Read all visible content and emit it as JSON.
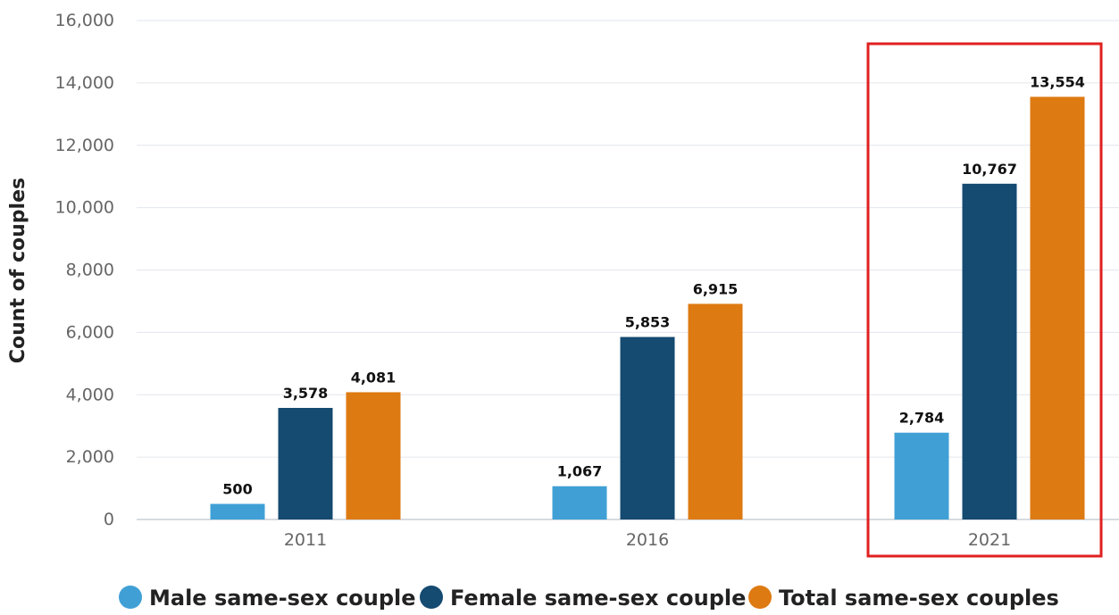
{
  "chart_data": {
    "type": "bar",
    "title": "",
    "xlabel": "",
    "ylabel": "Count of couples",
    "categories": [
      "2011",
      "2016",
      "2021"
    ],
    "ylim": [
      0,
      16000
    ],
    "yticks": [
      "0",
      "2,000",
      "4,000",
      "6,000",
      "8,000",
      "10,000",
      "12,000",
      "14,000",
      "16,000"
    ],
    "series": [
      {
        "name": "Male same-sex couple",
        "color": "#40a0d6",
        "values": [
          500,
          1067,
          2784
        ],
        "labels": [
          "500",
          "1,067",
          "2,784"
        ]
      },
      {
        "name": "Female same-sex couple",
        "color": "#154a71",
        "values": [
          3578,
          5853,
          10767
        ],
        "labels": [
          "3,578",
          "5,853",
          "10,767"
        ]
      },
      {
        "name": "Total same-sex couples",
        "color": "#de7a12",
        "values": [
          4081,
          6915,
          13554
        ],
        "labels": [
          "4,081",
          "6,915",
          "13,554"
        ]
      }
    ],
    "highlight": {
      "category": "2021",
      "color": "#e02020"
    },
    "grid": true,
    "legend_position": "bottom"
  }
}
